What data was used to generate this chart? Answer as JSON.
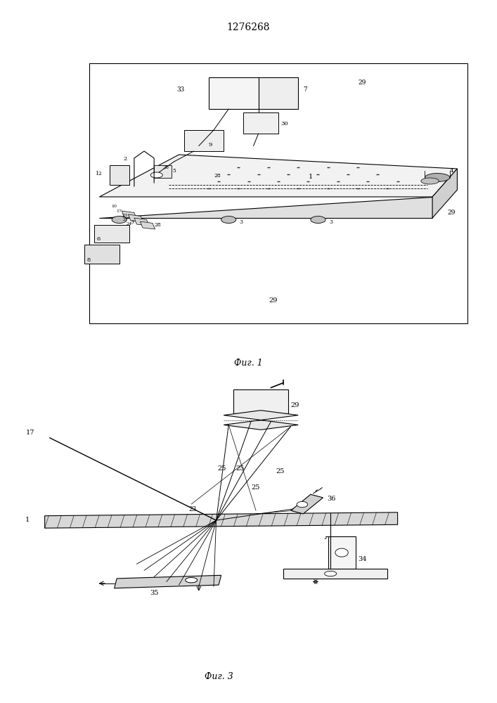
{
  "title": "1276268",
  "fig1_label": "Фиг. 1",
  "fig3_label": "Фиг. 3",
  "bg_color": "#ffffff",
  "line_color": "#000000",
  "lw": 0.8
}
